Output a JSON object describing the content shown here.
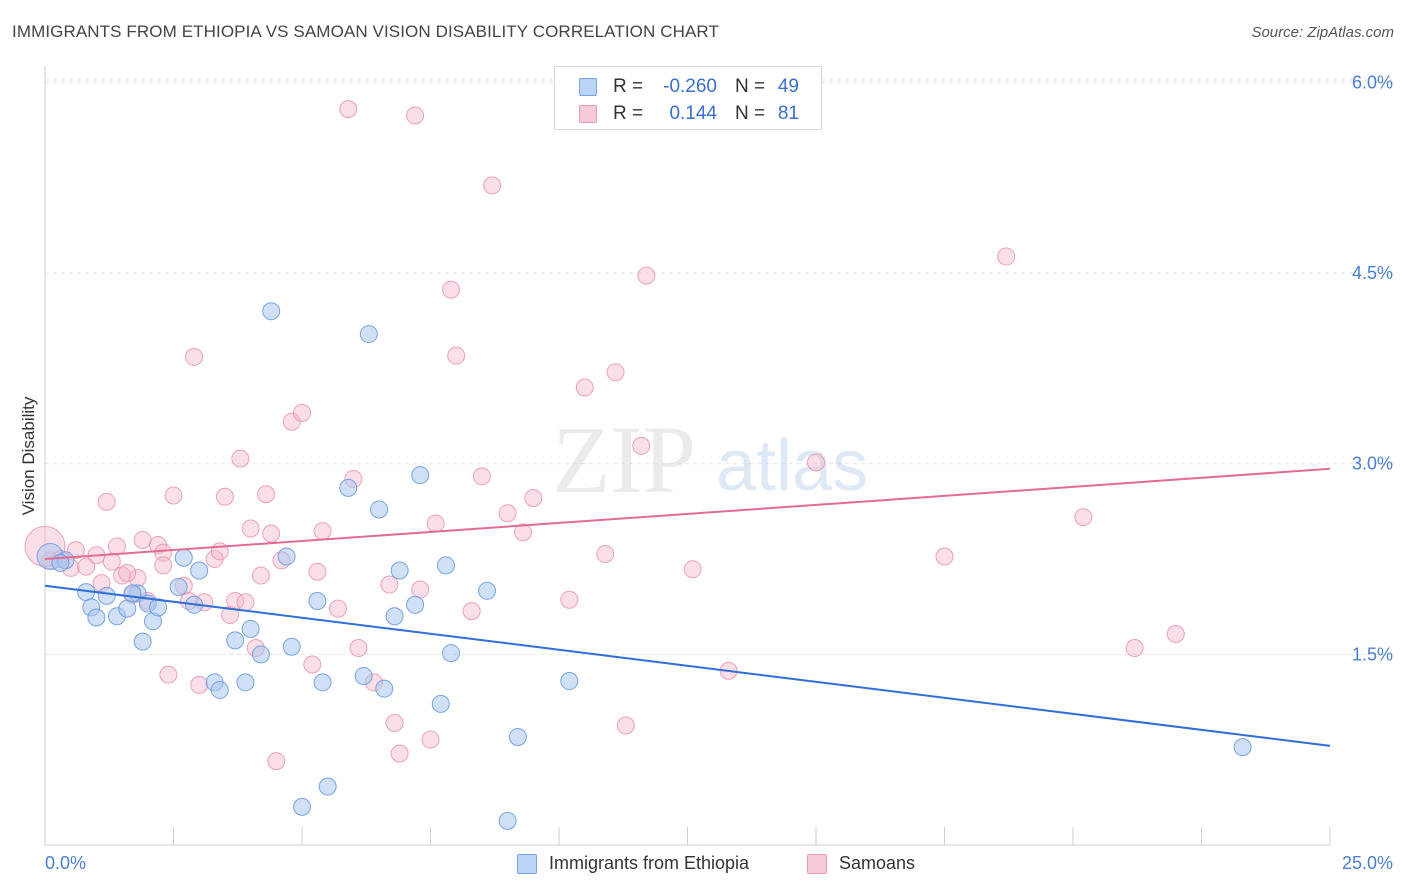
{
  "title": "IMMIGRANTS FROM ETHIOPIA VS SAMOAN VISION DISABILITY CORRELATION CHART",
  "source": "Source: ZipAtlas.com",
  "watermark": {
    "zip": "ZIP",
    "atlas": "atlas"
  },
  "legend_top": [
    {
      "r_label": "R =",
      "r_value": "-0.260",
      "n_label": "N =",
      "n_value": "49",
      "color": "#a9c7ef"
    },
    {
      "r_label": "R =",
      "r_value": "0.144",
      "n_label": "N =",
      "n_value": "81",
      "color": "#f5b8cc"
    }
  ],
  "legend_bottom": [
    {
      "label": "Immigrants from Ethiopia",
      "color": "#a9c7ef"
    },
    {
      "label": "Samoans",
      "color": "#f5b8cc"
    }
  ],
  "chart_data": {
    "type": "scatter",
    "ylabel": "Vision Disability",
    "xlim": [
      0,
      25
    ],
    "ylim": [
      0,
      6.2
    ],
    "x_tick_labels": [
      "0.0%",
      "25.0%"
    ],
    "y_ticks": [
      1.5,
      3.0,
      4.5,
      6.0
    ],
    "y_tick_labels": [
      "1.5%",
      "3.0%",
      "4.5%",
      "6.0%"
    ],
    "grid": "horizontal-dashed",
    "colors": {
      "ethiopia_fill": "#a9c7ef",
      "ethiopia_stroke": "#6d9be0",
      "ethiopia_line": "#2f6fd6",
      "samoan_fill": "#f5b8cc",
      "samoan_stroke": "#e88ea8",
      "samoan_line": "#e36c93",
      "tick_label": "#4a7fd0"
    },
    "series": [
      {
        "name": "Immigrants from Ethiopia",
        "trend": {
          "x": [
            0,
            25
          ],
          "y": [
            2.04,
            0.78
          ]
        },
        "points": [
          [
            0.1,
            2.27
          ],
          [
            0.4,
            2.24
          ],
          [
            0.8,
            1.99
          ],
          [
            0.9,
            1.87
          ],
          [
            1.0,
            1.79
          ],
          [
            1.2,
            1.96
          ],
          [
            1.4,
            1.8
          ],
          [
            1.6,
            1.86
          ],
          [
            1.8,
            1.98
          ],
          [
            1.9,
            1.6
          ],
          [
            2.0,
            1.9
          ],
          [
            2.1,
            1.76
          ],
          [
            2.2,
            1.87
          ],
          [
            2.6,
            2.03
          ],
          [
            2.7,
            2.26
          ],
          [
            2.9,
            1.89
          ],
          [
            3.0,
            2.16
          ],
          [
            3.3,
            1.28
          ],
          [
            3.4,
            1.22
          ],
          [
            3.7,
            1.61
          ],
          [
            3.9,
            1.28
          ],
          [
            4.0,
            1.7
          ],
          [
            4.2,
            1.5
          ],
          [
            4.4,
            4.2
          ],
          [
            4.7,
            2.27
          ],
          [
            4.8,
            1.56
          ],
          [
            5.0,
            0.3
          ],
          [
            5.3,
            1.92
          ],
          [
            5.4,
            1.28
          ],
          [
            5.5,
            0.46
          ],
          [
            5.9,
            2.81
          ],
          [
            6.2,
            1.33
          ],
          [
            6.3,
            4.02
          ],
          [
            6.5,
            2.64
          ],
          [
            6.6,
            1.23
          ],
          [
            6.8,
            1.8
          ],
          [
            6.9,
            2.16
          ],
          [
            7.2,
            1.89
          ],
          [
            7.3,
            2.91
          ],
          [
            7.7,
            1.11
          ],
          [
            7.8,
            2.2
          ],
          [
            7.9,
            1.51
          ],
          [
            8.6,
            2.0
          ],
          [
            9.0,
            0.19
          ],
          [
            9.2,
            0.85
          ],
          [
            10.2,
            1.29
          ],
          [
            23.3,
            0.77
          ],
          [
            1.7,
            1.98
          ],
          [
            0.3,
            2.22
          ]
        ]
      },
      {
        "name": "Samoans",
        "trend": {
          "x": [
            0,
            25
          ],
          "y": [
            2.25,
            2.96
          ]
        },
        "points": [
          [
            0.1,
            2.24
          ],
          [
            0.3,
            2.25
          ],
          [
            0.5,
            2.18
          ],
          [
            0.6,
            2.32
          ],
          [
            0.8,
            2.19
          ],
          [
            1.0,
            2.28
          ],
          [
            1.1,
            2.06
          ],
          [
            1.2,
            2.7
          ],
          [
            1.3,
            2.23
          ],
          [
            1.4,
            2.35
          ],
          [
            1.5,
            2.12
          ],
          [
            1.7,
            1.97
          ],
          [
            1.8,
            2.1
          ],
          [
            1.9,
            2.4
          ],
          [
            2.0,
            1.92
          ],
          [
            2.2,
            2.36
          ],
          [
            2.3,
            2.3
          ],
          [
            2.3,
            2.2
          ],
          [
            2.4,
            1.34
          ],
          [
            2.5,
            2.75
          ],
          [
            2.8,
            1.92
          ],
          [
            2.9,
            3.84
          ],
          [
            3.0,
            1.26
          ],
          [
            3.1,
            1.91
          ],
          [
            3.3,
            2.25
          ],
          [
            3.4,
            2.31
          ],
          [
            3.5,
            2.74
          ],
          [
            3.6,
            1.81
          ],
          [
            3.7,
            1.92
          ],
          [
            3.8,
            3.04
          ],
          [
            3.9,
            1.91
          ],
          [
            4.0,
            2.49
          ],
          [
            4.1,
            1.55
          ],
          [
            4.2,
            2.12
          ],
          [
            4.3,
            2.76
          ],
          [
            4.4,
            2.45
          ],
          [
            4.5,
            0.66
          ],
          [
            4.6,
            2.24
          ],
          [
            4.8,
            3.33
          ],
          [
            5.0,
            3.4
          ],
          [
            5.2,
            1.42
          ],
          [
            5.3,
            2.15
          ],
          [
            5.4,
            2.47
          ],
          [
            5.7,
            1.86
          ],
          [
            5.9,
            5.79
          ],
          [
            6.1,
            1.55
          ],
          [
            6.4,
            1.28
          ],
          [
            6.7,
            2.05
          ],
          [
            6.8,
            0.96
          ],
          [
            6.9,
            0.72
          ],
          [
            7.2,
            5.74
          ],
          [
            7.3,
            2.01
          ],
          [
            7.5,
            0.83
          ],
          [
            7.6,
            2.53
          ],
          [
            7.9,
            4.37
          ],
          [
            8.0,
            3.85
          ],
          [
            8.3,
            1.84
          ],
          [
            8.5,
            2.9
          ],
          [
            8.7,
            5.19
          ],
          [
            9.0,
            2.61
          ],
          [
            9.3,
            2.46
          ],
          [
            9.5,
            2.73
          ],
          [
            10.2,
            1.93
          ],
          [
            10.5,
            3.6
          ],
          [
            10.9,
            2.29
          ],
          [
            11.1,
            3.72
          ],
          [
            11.3,
            0.94
          ],
          [
            11.6,
            3.14
          ],
          [
            11.7,
            4.48
          ],
          [
            12.6,
            2.17
          ],
          [
            13.3,
            1.37
          ],
          [
            15.0,
            3.01
          ],
          [
            17.5,
            2.27
          ],
          [
            18.7,
            4.63
          ],
          [
            20.2,
            2.58
          ],
          [
            21.2,
            1.55
          ],
          [
            22.0,
            1.66
          ],
          [
            2.7,
            2.04
          ],
          [
            6.0,
            2.88
          ],
          [
            0.0,
            2.35
          ],
          [
            1.6,
            2.14
          ]
        ]
      }
    ]
  }
}
